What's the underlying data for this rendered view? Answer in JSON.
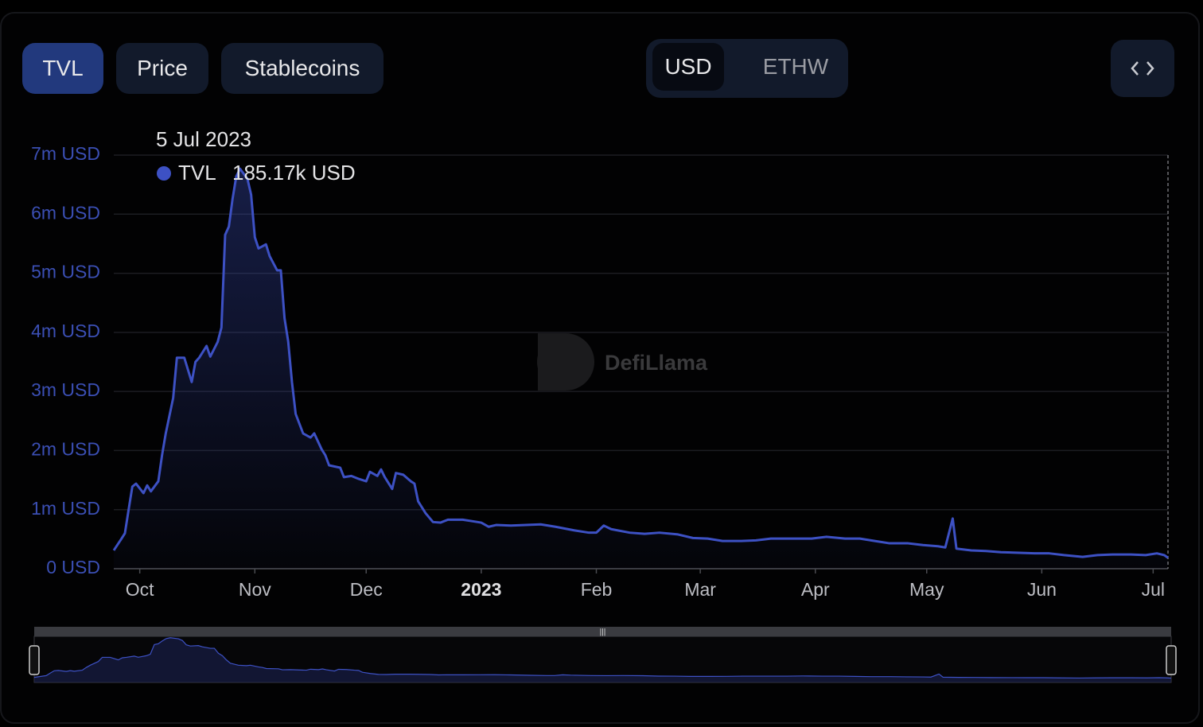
{
  "metric_tabs": [
    "TVL",
    "Price",
    "Stablecoins"
  ],
  "currency_tabs": [
    "USD",
    "ETHW"
  ],
  "watermark": "DefiLlama",
  "chart_data": {
    "type": "area",
    "x": [
      0,
      2,
      3,
      4,
      5,
      6,
      8,
      9,
      10,
      12,
      13,
      14,
      16,
      17,
      19,
      21,
      22,
      23,
      25,
      26,
      28,
      29,
      30,
      31,
      32,
      33,
      34,
      36,
      37,
      38,
      39,
      41,
      42,
      44,
      45,
      46,
      47,
      48,
      49,
      51,
      53,
      54,
      56,
      57,
      58,
      61,
      62,
      64,
      66,
      68,
      69,
      71,
      72,
      73,
      75,
      76,
      78,
      80,
      81,
      82,
      84,
      86,
      88,
      90,
      94,
      96,
      99,
      101,
      103,
      107,
      111,
      115,
      119,
      124,
      128,
      130,
      132,
      134,
      139,
      143,
      147,
      152,
      156,
      160,
      164,
      169,
      173,
      177,
      184,
      188,
      192,
      197,
      201,
      205,
      209,
      214,
      218,
      222,
      224,
      226,
      227,
      231,
      235,
      239,
      244,
      248,
      252,
      256,
      261,
      265,
      269,
      274,
      278,
      281,
      283,
      284
    ],
    "series": [
      {
        "name": "TVL",
        "color": "#3d51c4",
        "values": [
          0.31,
          0.5,
          0.6,
          1.0,
          1.39,
          1.44,
          1.28,
          1.41,
          1.31,
          1.48,
          1.92,
          2.29,
          2.89,
          3.57,
          3.57,
          3.16,
          3.5,
          3.57,
          3.77,
          3.59,
          3.84,
          4.08,
          5.65,
          5.79,
          6.26,
          6.64,
          6.77,
          6.6,
          6.33,
          5.61,
          5.42,
          5.49,
          5.29,
          5.05,
          5.05,
          4.24,
          3.84,
          3.16,
          2.62,
          2.29,
          2.22,
          2.29,
          2.02,
          1.92,
          1.75,
          1.71,
          1.55,
          1.57,
          1.52,
          1.48,
          1.64,
          1.57,
          1.68,
          1.55,
          1.35,
          1.62,
          1.59,
          1.48,
          1.44,
          1.14,
          0.94,
          0.79,
          0.78,
          0.83,
          0.83,
          0.81,
          0.78,
          0.71,
          0.74,
          0.73,
          0.74,
          0.75,
          0.71,
          0.65,
          0.61,
          0.61,
          0.73,
          0.67,
          0.61,
          0.59,
          0.61,
          0.58,
          0.52,
          0.51,
          0.47,
          0.47,
          0.48,
          0.51,
          0.51,
          0.51,
          0.54,
          0.51,
          0.51,
          0.47,
          0.43,
          0.43,
          0.4,
          0.38,
          0.36,
          0.85,
          0.34,
          0.31,
          0.3,
          0.28,
          0.27,
          0.26,
          0.26,
          0.23,
          0.2,
          0.23,
          0.24,
          0.24,
          0.23,
          0.26,
          0.23,
          0.18517
        ]
      }
    ],
    "xlim": [
      0,
      284
    ],
    "xticks": [
      {
        "value": 7,
        "label": "Oct"
      },
      {
        "value": 38,
        "label": "Nov"
      },
      {
        "value": 68,
        "label": "Dec"
      },
      {
        "value": 99,
        "label": "2023"
      },
      {
        "value": 130,
        "label": "Feb"
      },
      {
        "value": 158,
        "label": "Mar"
      },
      {
        "value": 189,
        "label": "Apr"
      },
      {
        "value": 219,
        "label": "May"
      },
      {
        "value": 250,
        "label": "Jun"
      },
      {
        "value": 280,
        "label": "Jul"
      }
    ],
    "ylim": [
      0,
      7
    ],
    "yticks": [
      {
        "value": 0,
        "label": "0 USD"
      },
      {
        "value": 1,
        "label": "1m USD"
      },
      {
        "value": 2,
        "label": "2m USD"
      },
      {
        "value": 3,
        "label": "3m USD"
      },
      {
        "value": 4,
        "label": "4m USD"
      },
      {
        "value": 5,
        "label": "5m USD"
      },
      {
        "value": 6,
        "label": "6m USD"
      },
      {
        "value": 7,
        "label": "7m USD"
      }
    ],
    "grid": true,
    "tooltip": {
      "date": "5 Jul 2023",
      "value_label": "185.17k USD"
    }
  }
}
